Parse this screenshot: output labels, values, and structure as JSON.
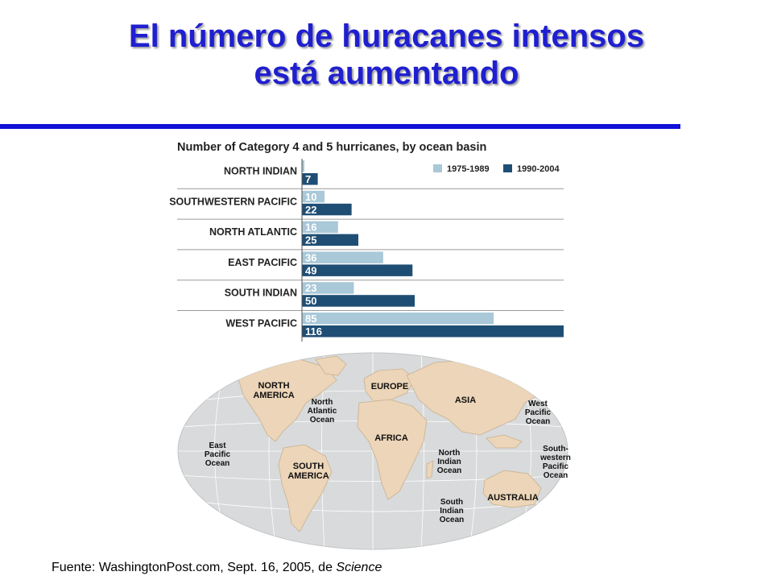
{
  "slide": {
    "title_line1": "El número de huracanes intensos",
    "title_line2": "está aumentando",
    "source_prefix": "Fuente:",
    "source_text": "WashingtonPost.com, Sept. 16, 2005, de",
    "source_italic": "Science",
    "accent_color": "#1010d8"
  },
  "chart_data": {
    "type": "bar",
    "orientation": "horizontal",
    "title": "Number of Category 4 and 5 hurricanes, by ocean basin",
    "categories": [
      "NORTH INDIAN",
      "SOUTHWESTERN PACIFIC",
      "NORTH ATLANTIC",
      "EAST PACIFIC",
      "SOUTH INDIAN",
      "WEST PACIFIC"
    ],
    "series": [
      {
        "name": "1975-1989",
        "values": [
          1,
          10,
          16,
          36,
          23,
          85
        ],
        "color": "#a9c8d8"
      },
      {
        "name": "1990-2004",
        "values": [
          7,
          22,
          25,
          49,
          50,
          116
        ],
        "color": "#1f4e74"
      }
    ],
    "xlim": [
      0,
      116
    ],
    "legend": "top-right",
    "data_labels": true
  },
  "map": {
    "labels": [
      "NORTH AMERICA",
      "North Atlantic Ocean",
      "EUROPE",
      "ASIA",
      "West Pacific Ocean",
      "East Pacific Ocean",
      "AFRICA",
      "North Indian Ocean",
      "South-western Pacific Ocean",
      "SOUTH AMERICA",
      "AUSTRALIA",
      "South Indian Ocean"
    ]
  }
}
